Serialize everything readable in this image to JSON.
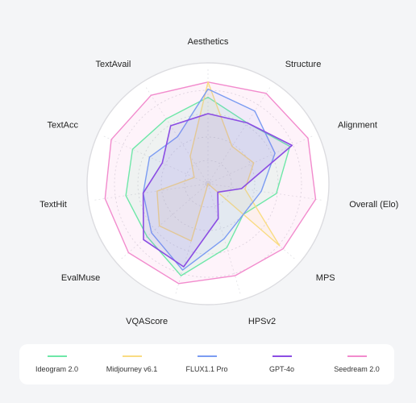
{
  "chart_data": {
    "type": "radar",
    "axes": [
      "Aesthetics",
      "Structure",
      "Alignment",
      "Overall (Elo)",
      "MPS",
      "HPSv2",
      "VQAScore",
      "EvalMuse",
      "TextHit",
      "TextAcc",
      "TextAvail"
    ],
    "rlim": [
      0,
      1
    ],
    "grid": true,
    "legend_position": "bottom",
    "series": [
      {
        "name": "Ideogram 2.0",
        "color": "#6ee7a8",
        "values": [
          0.74,
          0.62,
          0.77,
          0.59,
          0.4,
          0.57,
          0.82,
          0.69,
          0.71,
          0.71,
          0.66
        ]
      },
      {
        "name": "Midjourney v6.1",
        "color": "#f9dc83",
        "values": [
          0.87,
          0.38,
          0.43,
          0.32,
          0.81,
          0.0,
          0.51,
          0.55,
          0.44,
          0.13,
          0.28
        ]
      },
      {
        "name": "FLUX1.1 Pro",
        "color": "#7b9cf2",
        "values": [
          0.81,
          0.74,
          0.63,
          0.46,
          0.4,
          0.49,
          0.77,
          0.64,
          0.56,
          0.55,
          0.48
        ]
      },
      {
        "name": "GPT-4o",
        "color": "#8b4de3",
        "values": [
          0.6,
          0.62,
          0.79,
          0.29,
          0.11,
          0.31,
          0.74,
          0.73,
          0.56,
          0.43,
          0.59
        ]
      },
      {
        "name": "Seedream 2.0",
        "color": "#f28bcd",
        "values": [
          0.87,
          0.92,
          0.94,
          0.93,
          0.85,
          0.82,
          0.89,
          0.9,
          0.89,
          0.91,
          0.9
        ]
      }
    ]
  }
}
